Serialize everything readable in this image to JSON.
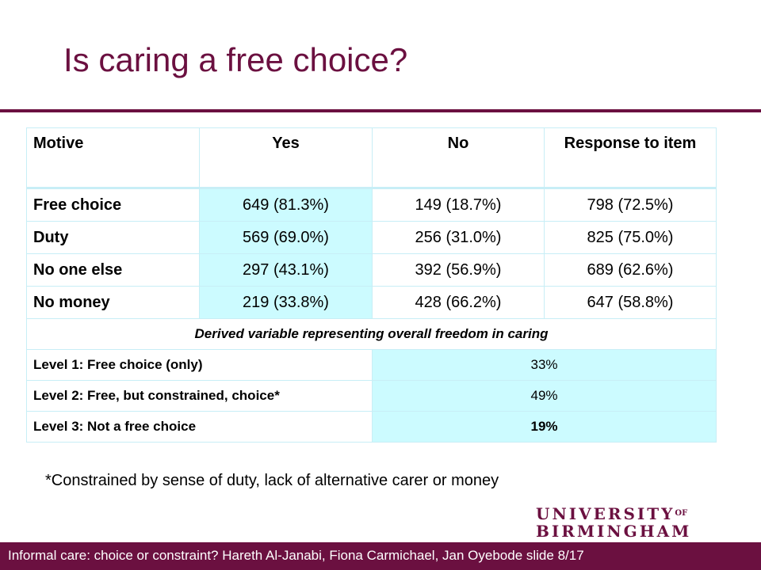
{
  "slide": {
    "title": "Is caring a free choice?",
    "footnote": "*Constrained by sense of duty, lack of alternative carer or money",
    "footer": "Informal care: choice or constraint? Hareth Al-Janabi, Fiona Carmichael, Jan Oyebode  slide  8/17",
    "logo": {
      "line1": "UNIVERSITY",
      "line1_suffix": "OF",
      "line2": "BIRMINGHAM"
    }
  },
  "colors": {
    "brand": "#6b1040",
    "cell_highlight": "#ccfbff",
    "border": "#c8eef6"
  },
  "table": {
    "headers": {
      "motive": "Motive",
      "yes": "Yes",
      "no": "No",
      "response": "Response to item"
    },
    "rows": [
      {
        "motive": "Free choice",
        "yes": "649 (81.3%)",
        "no": "149 (18.7%)",
        "response": "798 (72.5%)"
      },
      {
        "motive": "Duty",
        "yes": "569 (69.0%)",
        "no": "256 (31.0%)",
        "response": "825 (75.0%)"
      },
      {
        "motive": "No one else",
        "yes": "297 (43.1%)",
        "no": "392 (56.9%)",
        "response": "689 (62.6%)"
      },
      {
        "motive": "No money",
        "yes": "219 (33.8%)",
        "no": "428 (66.2%)",
        "response": "647 (58.8%)"
      }
    ],
    "derived_heading": "Derived variable representing overall freedom in caring",
    "levels": [
      {
        "label": "Level 1: Free choice (only)",
        "value": "33%"
      },
      {
        "label": "Level 2: Free, but constrained, choice*",
        "value": "49%"
      },
      {
        "label": "Level 3: Not a free choice",
        "value": "19%"
      }
    ]
  }
}
